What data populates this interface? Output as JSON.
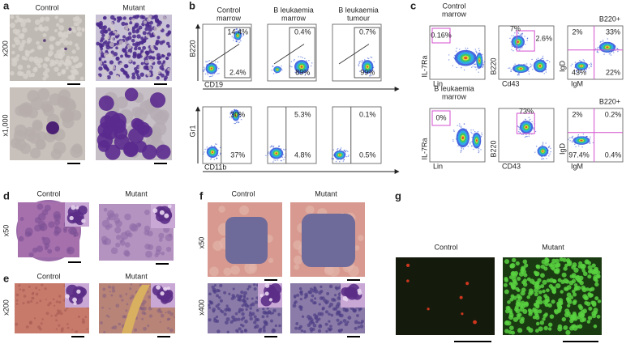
{
  "panels": {
    "a": {
      "label": "a",
      "columns": [
        "Control",
        "Mutant"
      ],
      "rows": [
        "x200",
        "x1,000"
      ]
    },
    "b": {
      "label": "b",
      "columns": [
        [
          "Control",
          "marrow"
        ],
        [
          "B leukaemia",
          "marrow"
        ],
        [
          "B leukaemia",
          "tumour"
        ]
      ],
      "rows": [
        {
          "y_axis": "B220",
          "x_axis": "CD19",
          "plots": [
            [
              "14.4%",
              "2.4%"
            ],
            [
              "0.4%",
              "89%"
            ],
            [
              "0.7%",
              "99%"
            ]
          ]
        },
        {
          "y_axis": "Gr1",
          "x_axis": "CD11b",
          "plots": [
            [
              "30%",
              "37%"
            ],
            [
              "5.3%",
              "4.8%"
            ],
            [
              "0.1%",
              "0.5%"
            ]
          ]
        }
      ]
    },
    "c": {
      "label": "c",
      "rows": [
        {
          "title": [
            "Control",
            "marrow"
          ],
          "plots": [
            {
              "y_axis": "IL-7Ra",
              "x_axis": "Lin",
              "gates": [
                "0.16%"
              ]
            },
            {
              "y_axis": "B220",
              "x_axis": "Cd43",
              "gates": [
                "7%",
                "2.6%"
              ]
            },
            {
              "title": "B220+",
              "y_axis": "IgD",
              "x_axis": "IgM",
              "gates": [
                "2%",
                "33%",
                "43%",
                "22%"
              ]
            }
          ]
        },
        {
          "title": [
            "B leukaemia",
            "marrow"
          ],
          "plots": [
            {
              "y_axis": "IL-7Ra",
              "x_axis": "Lin",
              "gates": [
                "0%"
              ]
            },
            {
              "y_axis": "B220",
              "x_axis": "CD43",
              "gates": [
                "73%"
              ]
            },
            {
              "title": "B220+",
              "y_axis": "IgD",
              "x_axis": "IgM",
              "gates": [
                "2%",
                "0.2%",
                "97.4%",
                "0.4%"
              ]
            }
          ]
        }
      ]
    },
    "d": {
      "label": "d",
      "columns": [
        "Control",
        "Mutant"
      ],
      "rows": [
        "x50"
      ]
    },
    "e": {
      "label": "e",
      "columns": [
        "Control",
        "Mutant"
      ],
      "rows": [
        "x200"
      ]
    },
    "f": {
      "label": "f",
      "columns": [
        "Control",
        "Mutant"
      ],
      "rows": [
        "x50",
        "x400"
      ]
    },
    "g": {
      "label": "g",
      "columns": [
        "Control",
        "Mutant"
      ]
    }
  }
}
